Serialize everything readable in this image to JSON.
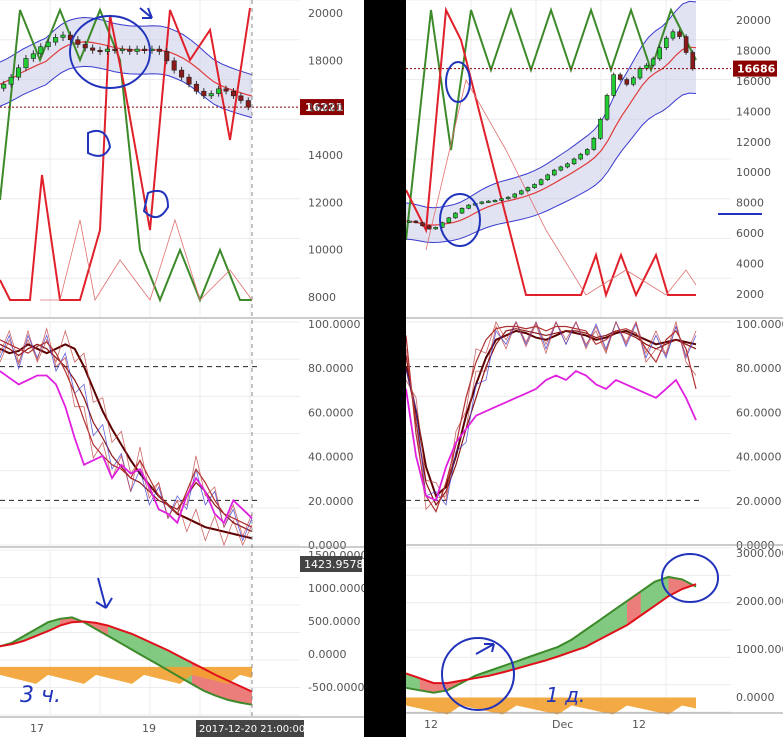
{
  "colors": {
    "bull": "#22cc33",
    "bear": "#8b1a1a",
    "band_fill": "#c8cce8",
    "band_line": "#3a3ad0",
    "sig_green": "#3d8a2a",
    "sig_red": "#e0202a",
    "stoch_main": "#6b0000",
    "stoch_fast": "#e020e0",
    "annot": "#2233bb",
    "hist_green": "#6cbf6c",
    "hist_red": "#f07a7a",
    "hist_orange": "#f2a030",
    "price_tag": "#8b0000"
  },
  "left": {
    "price_axis": [
      "20000",
      "18000",
      "16000",
      "14000",
      "12000",
      "10000",
      "8000"
    ],
    "price_tag": "16221",
    "osc_axis": [
      "100.0000",
      "80.0000",
      "60.0000",
      "40.0000",
      "20.0000",
      "0.0000"
    ],
    "macd_axis": [
      "1500.0000",
      "1000.0000",
      "500.0000",
      "0.0000",
      "-500.0000"
    ],
    "macd_tag": "1423.9578",
    "x_labels": [
      "17",
      "19"
    ],
    "time_tag": "2017-12-20 21:00:00",
    "annotation": "3 ч."
  },
  "right": {
    "price_axis": [
      "20000",
      "18000",
      "16000",
      "14000",
      "12000",
      "10000",
      "8000",
      "6000",
      "4000",
      "2000"
    ],
    "price_tag": "16686",
    "osc_axis": [
      "100.0000",
      "80.0000",
      "60.0000",
      "40.0000",
      "20.0000",
      "0.0000"
    ],
    "macd_axis": [
      "3000.0000",
      "2000.0000",
      "1000.0000",
      "0.0000"
    ],
    "x_labels": [
      "12",
      "Dec",
      "12"
    ],
    "annotation": "1 д."
  },
  "chart_data": [
    {
      "type": "candlestick",
      "panel": "left-price",
      "ylim": [
        7200,
        20800
      ],
      "last_price": 16221,
      "close": [
        17200,
        17500,
        17900,
        18300,
        18500,
        18800,
        19000,
        19200,
        19300,
        19100,
        18900,
        18750,
        18650,
        18600,
        18700,
        18650,
        18700,
        18600,
        18700,
        18650,
        18700,
        18600,
        18200,
        17800,
        17500,
        17200,
        16900,
        16700,
        16800,
        17000,
        16900,
        16700,
        16500,
        16221
      ]
    },
    {
      "type": "candlestick",
      "panel": "right-price",
      "ylim": [
        1000,
        21000
      ],
      "last_price": 16686,
      "close": [
        7100,
        7000,
        6800,
        6600,
        6700,
        7000,
        7300,
        7600,
        7900,
        8100,
        8200,
        8300,
        8350,
        8400,
        8500,
        8600,
        8800,
        9000,
        9200,
        9400,
        9700,
        10000,
        10300,
        10500,
        10700,
        11000,
        11300,
        11600,
        12300,
        13500,
        15000,
        16300,
        16000,
        15700,
        16100,
        16700,
        16900,
        17300,
        18000,
        18600,
        19000,
        18700,
        17700,
        16686
      ]
    },
    {
      "type": "line",
      "panel": "left-stochastic",
      "ylim": [
        0,
        100
      ],
      "levels": [
        80,
        20
      ],
      "series": [
        {
          "values": [
            88,
            86,
            87,
            90,
            88,
            86,
            88,
            90,
            88,
            80,
            70,
            60,
            52,
            45,
            38,
            32,
            27,
            22,
            18,
            14,
            12,
            10,
            8,
            7,
            6,
            5,
            4,
            3
          ]
        },
        {
          "values": [
            90,
            88,
            85,
            88,
            90,
            88,
            84,
            80,
            74,
            66,
            55,
            48,
            40,
            35,
            30,
            28,
            24,
            20,
            18,
            16,
            22,
            28,
            24,
            18,
            14,
            10,
            8,
            6
          ]
        },
        {
          "values": [
            92,
            90,
            88,
            86,
            89,
            91,
            86,
            78,
            68,
            56,
            45,
            40,
            36,
            34,
            30,
            38,
            30,
            22,
            18,
            14,
            24,
            34,
            28,
            20,
            14,
            12,
            10,
            8
          ]
        },
        {
          "values": [
            78,
            75,
            72,
            74,
            76,
            76,
            72,
            62,
            48,
            36,
            38,
            40,
            30,
            36,
            32,
            34,
            26,
            16,
            14,
            10,
            22,
            30,
            24,
            14,
            10,
            20,
            16,
            12
          ],
          "color": "stoch_fast"
        }
      ]
    },
    {
      "type": "line",
      "panel": "right-stochastic",
      "ylim": [
        0,
        100
      ],
      "levels": [
        80,
        20
      ],
      "series": [
        {
          "values": [
            80,
            60,
            35,
            22,
            26,
            40,
            58,
            72,
            84,
            92,
            94,
            96,
            95,
            93,
            92,
            94,
            96,
            95,
            94,
            92,
            93,
            95,
            96,
            94,
            92,
            90,
            91,
            92,
            91,
            90
          ]
        },
        {
          "values": [
            85,
            55,
            28,
            18,
            24,
            36,
            52,
            66,
            80,
            90,
            96,
            97,
            96,
            95,
            94,
            95,
            96,
            96,
            95,
            93,
            94,
            96,
            95,
            93,
            90,
            88,
            90,
            92,
            90,
            88
          ]
        },
        {
          "values": [
            94,
            50,
            22,
            15,
            28,
            45,
            66,
            82,
            92,
            97,
            98,
            98,
            97,
            98,
            96,
            98,
            98,
            97,
            96,
            90,
            92,
            96,
            97,
            95,
            88,
            82,
            92,
            96,
            88,
            70
          ]
        },
        {
          "values": [
            70,
            40,
            22,
            20,
            35,
            46,
            52,
            58,
            60,
            62,
            64,
            66,
            68,
            70,
            74,
            76,
            74,
            78,
            76,
            72,
            70,
            74,
            72,
            70,
            68,
            66,
            70,
            74,
            66,
            56
          ],
          "color": "stoch_fast"
        }
      ]
    },
    {
      "type": "area",
      "panel": "left-macd",
      "ylim": [
        -700,
        1700
      ],
      "series": [
        {
          "values": [
            300,
            350,
            450,
            550,
            650,
            700,
            720,
            650,
            550,
            450,
            350,
            250,
            150,
            50,
            -50,
            -150,
            -250,
            -350,
            -420,
            -480,
            -520,
            -550
          ]
        },
        {
          "values": [
            300,
            330,
            380,
            450,
            520,
            600,
            650,
            660,
            640,
            600,
            540,
            480,
            400,
            320,
            240,
            150,
            60,
            -30,
            -120,
            -200,
            -280,
            -360
          ]
        }
      ]
    },
    {
      "type": "area",
      "panel": "right-macd",
      "ylim": [
        -300,
        3100
      ],
      "series": [
        {
          "values": [
            200,
            150,
            100,
            150,
            300,
            450,
            550,
            650,
            750,
            850,
            950,
            1050,
            1200,
            1400,
            1600,
            1800,
            2000,
            2200,
            2400,
            2500,
            2450,
            2300
          ]
        },
        {
          "values": [
            500,
            400,
            300,
            300,
            350,
            400,
            450,
            520,
            600,
            680,
            760,
            850,
            950,
            1050,
            1200,
            1350,
            1500,
            1700,
            1900,
            2100,
            2250,
            2350
          ]
        }
      ]
    }
  ]
}
